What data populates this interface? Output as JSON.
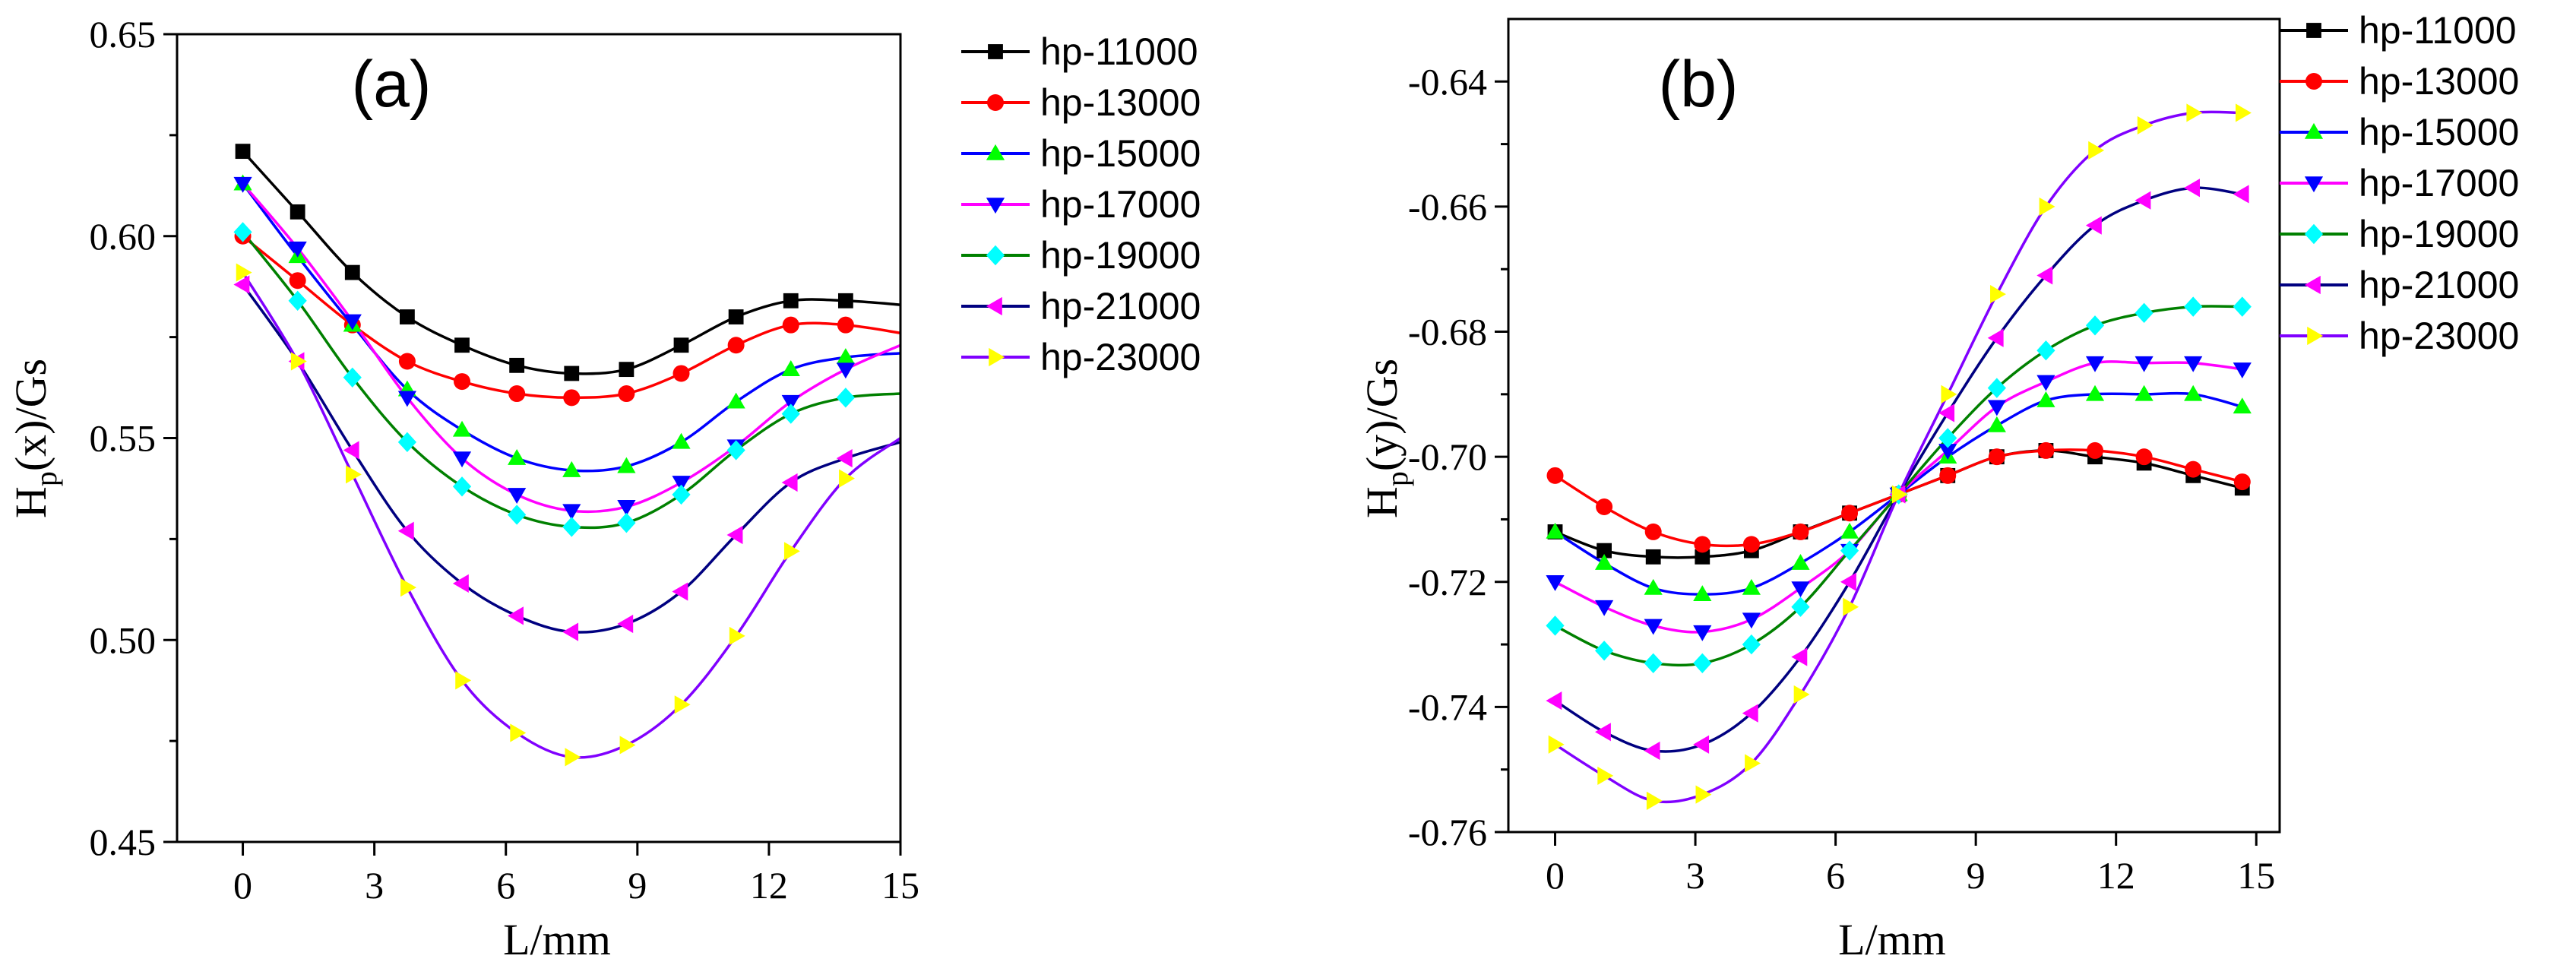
{
  "figure": {
    "background": "#ffffff"
  },
  "chart_data": [
    {
      "type": "line",
      "panel_label": "(a)",
      "xlabel": "L/mm",
      "ylabel": {
        "main": "H",
        "sub": "p",
        "rest": "(x)/Gs"
      },
      "xlim": [
        -1.5,
        15
      ],
      "ylim": [
        0.45,
        0.65
      ],
      "xticks": [
        0,
        3,
        6,
        9,
        12,
        15
      ],
      "yticks": [
        0.45,
        0.5,
        0.55,
        0.6,
        0.65
      ],
      "ytick_labels": [
        "0.45",
        "0.50",
        "0.55",
        "0.60",
        "0.65"
      ],
      "x": [
        0,
        1.25,
        2.5,
        3.75,
        5.0,
        6.25,
        7.5,
        8.75,
        10.0,
        11.25,
        12.5,
        13.75
      ],
      "legend_position": "right",
      "series": [
        {
          "name": "hp-11000",
          "color": "#000000",
          "marker": "square",
          "values": [
            0.621,
            0.606,
            0.591,
            0.58,
            0.573,
            0.568,
            0.566,
            0.567,
            0.573,
            0.58,
            0.584,
            0.584
          ],
          "end_value": 0.583
        },
        {
          "name": "hp-13000",
          "color": "#ff0000",
          "marker": "circle",
          "values": [
            0.6,
            0.589,
            0.578,
            0.569,
            0.564,
            0.561,
            0.56,
            0.561,
            0.566,
            0.573,
            0.578,
            0.578
          ],
          "end_value": 0.576
        },
        {
          "name": "hp-15000",
          "color": "#0000ff",
          "marker": "triangle-up",
          "marker_color": "#00ff00",
          "values": [
            0.613,
            0.595,
            0.578,
            0.562,
            0.552,
            0.545,
            0.542,
            0.543,
            0.549,
            0.559,
            0.567,
            0.57
          ],
          "end_value": 0.571
        },
        {
          "name": "hp-17000",
          "color": "#ff00ff",
          "marker": "triangle-down",
          "marker_color": "#0000ff",
          "values": [
            0.613,
            0.597,
            0.579,
            0.56,
            0.545,
            0.536,
            0.532,
            0.533,
            0.539,
            0.548,
            0.559,
            0.567
          ],
          "end_value": 0.573
        },
        {
          "name": "hp-19000",
          "color": "#008000",
          "marker": "diamond",
          "marker_color": "#00ffff",
          "values": [
            0.601,
            0.584,
            0.565,
            0.549,
            0.538,
            0.531,
            0.528,
            0.529,
            0.536,
            0.547,
            0.556,
            0.56
          ],
          "end_value": 0.561
        },
        {
          "name": "hp-21000",
          "color": "#000080",
          "marker": "triangle-left",
          "marker_color": "#ff00ff",
          "values": [
            0.588,
            0.569,
            0.547,
            0.527,
            0.514,
            0.506,
            0.502,
            0.504,
            0.512,
            0.526,
            0.539,
            0.545
          ],
          "end_value": 0.549
        },
        {
          "name": "hp-23000",
          "color": "#8000ff",
          "marker": "triangle-right",
          "marker_color": "#ffff00",
          "values": [
            0.591,
            0.569,
            0.541,
            0.513,
            0.49,
            0.477,
            0.471,
            0.474,
            0.484,
            0.501,
            0.522,
            0.54
          ],
          "end_value": 0.55
        }
      ]
    },
    {
      "type": "line",
      "panel_label": "(b)",
      "xlabel": "L/mm",
      "ylabel": {
        "main": "H",
        "sub": "p",
        "rest": "(y)/Gs"
      },
      "xlim": [
        -1,
        15.5
      ],
      "ylim": [
        -0.76,
        -0.63
      ],
      "xticks": [
        0,
        3,
        6,
        9,
        12,
        15
      ],
      "yticks": [
        -0.76,
        -0.74,
        -0.72,
        -0.7,
        -0.68,
        -0.66,
        -0.64
      ],
      "ytick_labels": [
        "-0.76",
        "-0.74",
        "-0.72",
        "-0.70",
        "-0.68",
        "-0.66",
        "-0.64"
      ],
      "x": [
        0,
        1.05,
        2.1,
        3.15,
        4.2,
        5.25,
        6.3,
        7.35,
        8.4,
        9.45,
        10.5,
        11.55,
        12.6,
        13.65,
        14.7
      ],
      "legend_position": "top-right",
      "series": [
        {
          "name": "hp-11000",
          "color": "#000000",
          "marker": "square",
          "values": [
            -0.712,
            -0.715,
            -0.716,
            -0.716,
            -0.715,
            -0.712,
            -0.709,
            -0.706,
            -0.703,
            -0.7,
            -0.699,
            -0.7,
            -0.701,
            -0.703,
            -0.705
          ]
        },
        {
          "name": "hp-13000",
          "color": "#ff0000",
          "marker": "circle",
          "values": [
            -0.703,
            -0.708,
            -0.712,
            -0.714,
            -0.714,
            -0.712,
            -0.709,
            -0.706,
            -0.703,
            -0.7,
            -0.699,
            -0.699,
            -0.7,
            -0.702,
            -0.704
          ]
        },
        {
          "name": "hp-15000",
          "color": "#0000ff",
          "marker": "triangle-up",
          "marker_color": "#00ff00",
          "values": [
            -0.712,
            -0.717,
            -0.721,
            -0.722,
            -0.721,
            -0.717,
            -0.712,
            -0.706,
            -0.7,
            -0.695,
            -0.691,
            -0.69,
            -0.69,
            -0.69,
            -0.692
          ]
        },
        {
          "name": "hp-17000",
          "color": "#ff00ff",
          "marker": "triangle-down",
          "marker_color": "#0000ff",
          "values": [
            -0.72,
            -0.724,
            -0.727,
            -0.728,
            -0.726,
            -0.721,
            -0.715,
            -0.706,
            -0.699,
            -0.692,
            -0.688,
            -0.685,
            -0.685,
            -0.685,
            -0.686
          ]
        },
        {
          "name": "hp-19000",
          "color": "#008000",
          "marker": "diamond",
          "marker_color": "#00ffff",
          "values": [
            -0.727,
            -0.731,
            -0.733,
            -0.733,
            -0.73,
            -0.724,
            -0.715,
            -0.706,
            -0.697,
            -0.689,
            -0.683,
            -0.679,
            -0.677,
            -0.676,
            -0.676
          ]
        },
        {
          "name": "hp-21000",
          "color": "#000080",
          "marker": "triangle-left",
          "marker_color": "#ff00ff",
          "values": [
            -0.739,
            -0.744,
            -0.747,
            -0.746,
            -0.741,
            -0.732,
            -0.72,
            -0.706,
            -0.693,
            -0.681,
            -0.671,
            -0.663,
            -0.659,
            -0.657,
            -0.658
          ]
        },
        {
          "name": "hp-23000",
          "color": "#8000ff",
          "marker": "triangle-right",
          "marker_color": "#ffff00",
          "values": [
            -0.746,
            -0.751,
            -0.755,
            -0.754,
            -0.749,
            -0.738,
            -0.724,
            -0.706,
            -0.69,
            -0.674,
            -0.66,
            -0.651,
            -0.647,
            -0.645,
            -0.645
          ]
        }
      ]
    }
  ]
}
